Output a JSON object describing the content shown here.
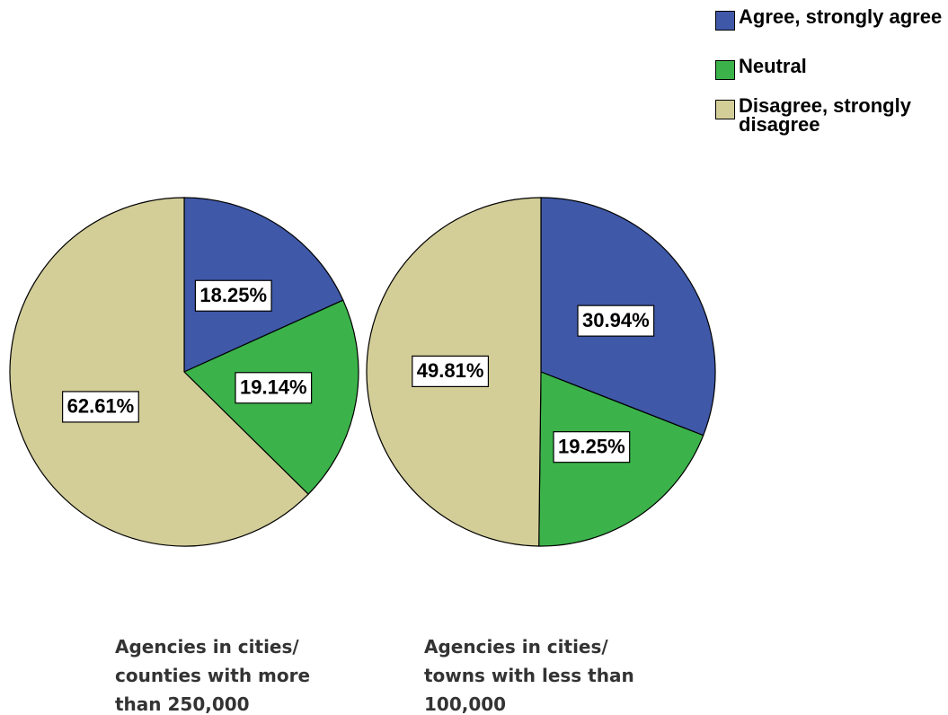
{
  "legend": {
    "categories": [
      "Agree, strongly agree",
      "Neutral",
      "Disagree, strongly disagree"
    ],
    "colors": [
      "#3f58a8",
      "#3bb34a",
      "#d3cd98"
    ]
  },
  "chart_data": [
    {
      "type": "pie",
      "title": "Agencies in cities/ counties with more than 250,000",
      "values": [
        18.25,
        19.14,
        62.61
      ],
      "value_labels": [
        "18.25%",
        "19.14%",
        "62.61%"
      ]
    },
    {
      "type": "pie",
      "title": "Agencies in cities/ towns with less than 100,000",
      "values": [
        30.94,
        19.25,
        49.81
      ],
      "value_labels": [
        "30.94%",
        "19.25%",
        "49.81%"
      ]
    }
  ]
}
